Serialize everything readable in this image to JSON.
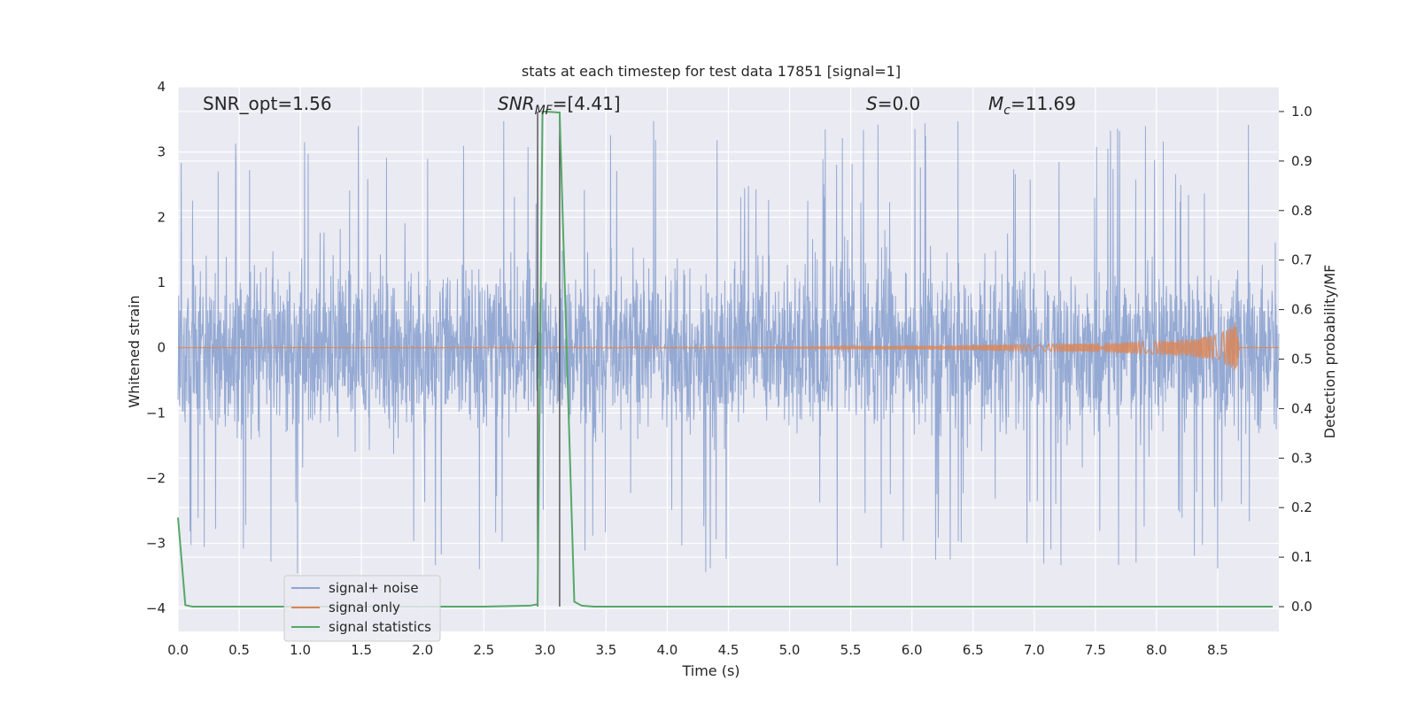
{
  "chart_data": {
    "type": "line",
    "title": "stats at each timestep for test data 17851 [signal=1]",
    "xlabel": "Time (s)",
    "ylabel": "Whitened strain",
    "ylabel_right": "Detection probability/MF",
    "xlim": [
      0.0,
      9.0
    ],
    "ylim": [
      -4.35,
      4.0
    ],
    "ylim_right": [
      -0.05,
      1.05
    ],
    "x_ticks": [
      "0.0",
      "0.5",
      "1.0",
      "1.5",
      "2.0",
      "2.5",
      "3.0",
      "3.5",
      "4.0",
      "4.5",
      "5.0",
      "5.5",
      "6.0",
      "6.5",
      "7.0",
      "7.5",
      "8.0",
      "8.5"
    ],
    "y_ticks": [
      "−4",
      "−3",
      "−2",
      "−1",
      "0",
      "1",
      "2",
      "3",
      "4"
    ],
    "y_ticks_right": [
      "0.0",
      "0.1",
      "0.2",
      "0.3",
      "0.4",
      "0.5",
      "0.6",
      "0.7",
      "0.8",
      "0.9",
      "1.0"
    ],
    "grid": true,
    "legend_position": "lower-left",
    "annotations": {
      "snr_opt": "SNR_opt=1.56",
      "snr_mf_main": "SNR",
      "snr_mf_sub": "MF",
      "snr_mf_rest": "=[4.41]",
      "s_main": "S",
      "s_rest": "=0.0",
      "mc_main": "M",
      "mc_sub": "c",
      "mc_rest": "=11.69"
    },
    "series": [
      {
        "name": "signal+ noise",
        "color": "#8fa5d1",
        "description": "whitened noise, roughly ±1.7 with spikes to about 3.5",
        "x_range": [
          0.0,
          9.0
        ],
        "y_envelope": [
          -3.6,
          3.5
        ]
      },
      {
        "name": "signal only",
        "color": "#dd8452",
        "description": "chirp growing toward merger",
        "x": [
          0.0,
          5.0,
          6.0,
          7.0,
          7.5,
          8.0,
          8.3,
          8.5,
          8.6,
          8.65,
          8.68
        ],
        "amplitude": [
          0.0,
          0.01,
          0.03,
          0.05,
          0.07,
          0.1,
          0.14,
          0.2,
          0.3,
          0.4,
          0.0
        ]
      },
      {
        "name": "signal statistics",
        "color": "#55a868",
        "axis": "right",
        "x": [
          0.0,
          0.06,
          0.12,
          0.5,
          1.0,
          1.5,
          2.0,
          2.5,
          2.88,
          2.94,
          2.98,
          3.0,
          3.12,
          3.18,
          3.24,
          3.3,
          3.4,
          4.0,
          5.0,
          6.0,
          7.0,
          8.0,
          8.95
        ],
        "y": [
          0.18,
          0.003,
          0.0,
          0.0,
          0.0,
          0.0,
          0.0,
          0.0,
          0.002,
          0.005,
          1.0,
          1.0,
          0.998,
          0.5,
          0.01,
          0.002,
          0.0,
          0.0,
          0.0,
          0.0,
          0.0,
          0.0,
          0.0
        ]
      }
    ],
    "vertical_lines": [
      {
        "x": 2.94,
        "color": "#444444"
      },
      {
        "x": 3.12,
        "color": "#444444"
      }
    ]
  }
}
